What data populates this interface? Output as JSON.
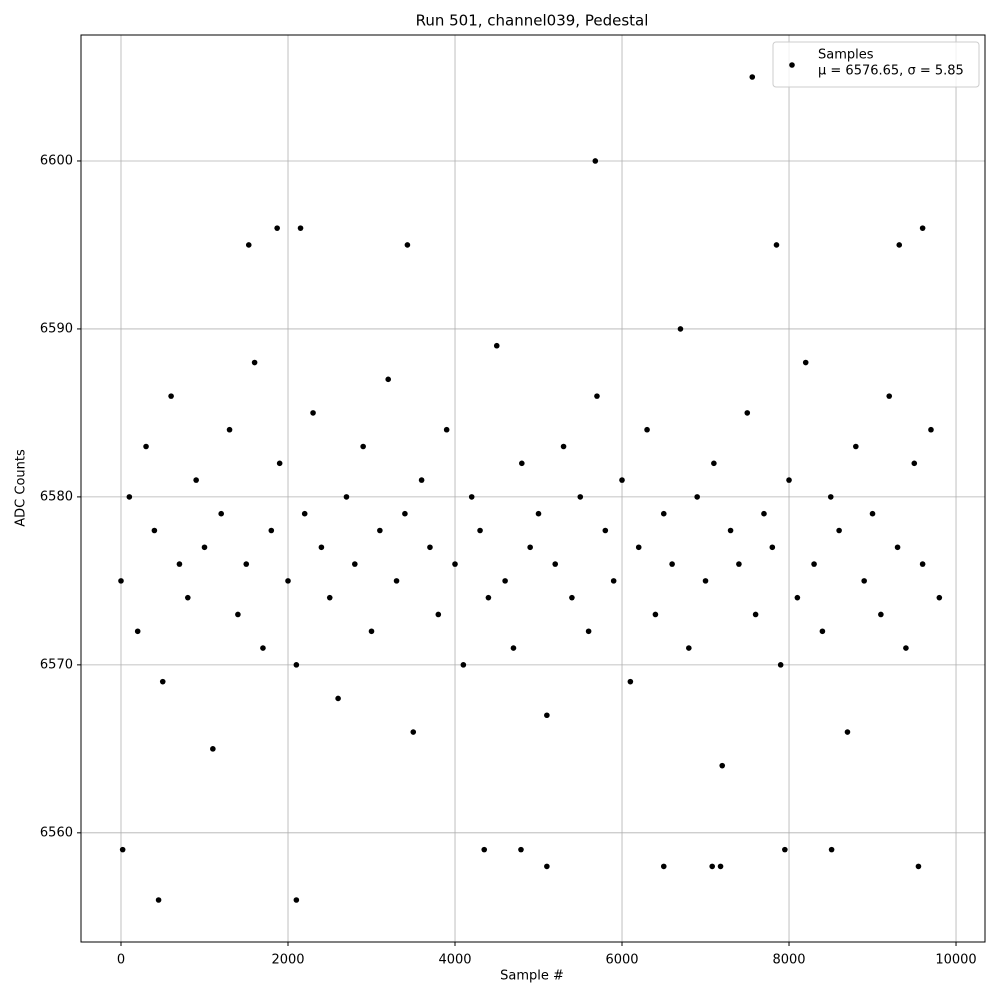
{
  "chart_data": {
    "type": "scatter",
    "title": "Run 501, channel039, Pedestal",
    "xlabel": "Sample #",
    "ylabel": "ADC Counts",
    "xlim": [
      -479,
      10347
    ],
    "ylim": [
      6553.5,
      6607.5
    ],
    "xticks": [
      0,
      2000,
      4000,
      6000,
      8000,
      10000
    ],
    "yticks": [
      6560,
      6570,
      6580,
      6590,
      6600
    ],
    "grid": true,
    "legend": "upper right",
    "legend_note": "μ = 6576.65, σ = 5.85",
    "series": [
      {
        "name": "Samples",
        "color": "#000000",
        "x": [
          0,
          100,
          200,
          300,
          400,
          500,
          600,
          700,
          800,
          900,
          1000,
          1100,
          1200,
          1300,
          1400,
          1500,
          1600,
          1700,
          1800,
          1900,
          2000,
          2100,
          2200,
          2300,
          2400,
          2500,
          2600,
          2700,
          2800,
          2900,
          3000,
          3100,
          3200,
          3300,
          3400,
          3500,
          3600,
          3700,
          3800,
          3900,
          4000,
          4100,
          4200,
          4300,
          4400,
          4500,
          4600,
          4700,
          4800,
          4900,
          5000,
          5100,
          5200,
          5300,
          5400,
          5500,
          5600,
          5700,
          5800,
          5900,
          6000,
          6100,
          6200,
          6300,
          6400,
          6500,
          6600,
          6700,
          6800,
          6900,
          7000,
          7100,
          7200,
          7300,
          7400,
          7500,
          7600,
          7700,
          7800,
          7900,
          8000,
          8100,
          8200,
          8300,
          8400,
          8500,
          8600,
          8700,
          8800,
          8900,
          9000,
          9100,
          9200,
          9300,
          9400,
          9500,
          9600,
          9700,
          9800,
          450,
          2100,
          7560,
          5680,
          1870,
          2150,
          9600,
          1530,
          3430,
          7850,
          9320,
          5100,
          6500,
          7080,
          7180,
          9550,
          20,
          4350,
          4790,
          7950,
          8510
        ],
        "values": [
          6575,
          6580,
          6572,
          6583,
          6578,
          6569,
          6586,
          6576,
          6574,
          6581,
          6577,
          6565,
          6579,
          6584,
          6573,
          6576,
          6588,
          6571,
          6578,
          6582,
          6575,
          6570,
          6579,
          6585,
          6577,
          6574,
          6568,
          6580,
          6576,
          6583,
          6572,
          6578,
          6587,
          6575,
          6579,
          6566,
          6581,
          6577,
          6573,
          6584,
          6576,
          6570,
          6580,
          6578,
          6574,
          6589,
          6575,
          6571,
          6582,
          6577,
          6579,
          6567,
          6576,
          6583,
          6574,
          6580,
          6572,
          6586,
          6578,
          6575,
          6581,
          6569,
          6577,
          6584,
          6573,
          6579,
          6576,
          6590,
          6571,
          6580,
          6575,
          6582,
          6564,
          6578,
          6576,
          6585,
          6573,
          6579,
          6577,
          6570,
          6581,
          6574,
          6588,
          6576,
          6572,
          6580,
          6578,
          6566,
          6583,
          6575,
          6579,
          6573,
          6586,
          6577,
          6571,
          6582,
          6576,
          6584,
          6574,
          6556,
          6556,
          6605,
          6600,
          6596,
          6596,
          6596,
          6595,
          6595,
          6595,
          6595,
          6558,
          6558,
          6558,
          6558,
          6558,
          6559,
          6559,
          6559,
          6559,
          6559
        ]
      }
    ]
  }
}
